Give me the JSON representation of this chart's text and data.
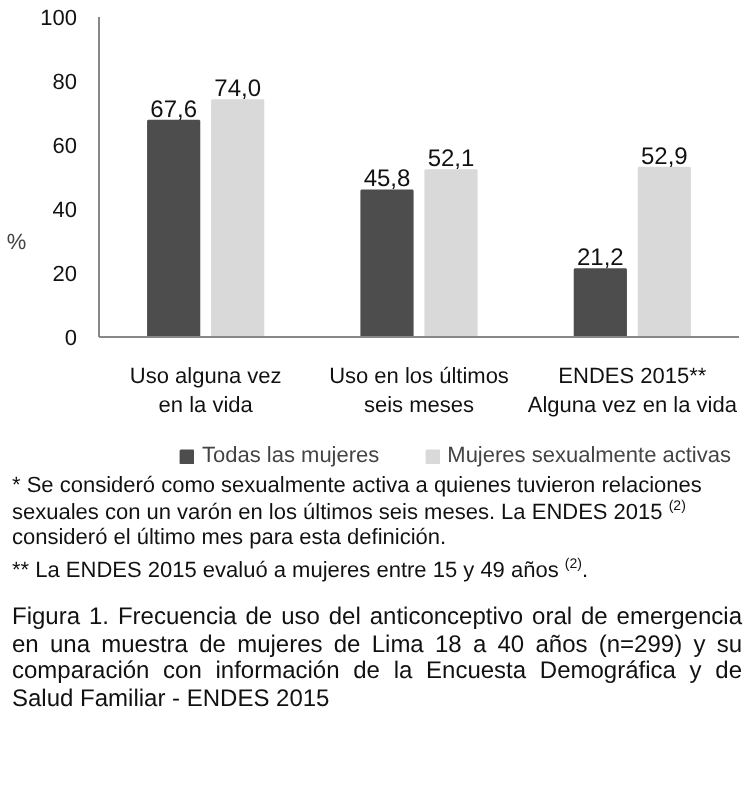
{
  "chart_data": {
    "type": "bar",
    "ylabel": "%",
    "categories": [
      "Uso alguna vez\nen la vida",
      "Uso en los últimos\nseis meses",
      "ENDES 2015**\nAlguna vez en la vida"
    ],
    "series": [
      {
        "name": "Todas las mujeres",
        "color": "#4d4d4d",
        "values": [
          67.6,
          45.8,
          21.2
        ],
        "value_labels": [
          "67,6",
          "45,8",
          "21,2"
        ]
      },
      {
        "name": "Mujeres sexualmente activas",
        "color": "#d9d9d9",
        "values": [
          74.0,
          52.1,
          52.9
        ],
        "value_labels": [
          "74,0",
          "52,1",
          "52,9"
        ]
      }
    ],
    "ylim": [
      0,
      100
    ],
    "yticks": [
      0,
      20,
      40,
      60,
      80,
      100
    ],
    "grid": false,
    "legend": "bottom",
    "annotations": [
      "* Se consideró como sexualmente activa a quienes tuvieron relaciones sexuales con un varón en los últimos seis meses. La ENDES 2015 $^{(2)}$ consideró el último mes para esta definición.",
      "** La ENDES 2015 evaluó a mujeres entre 15 y 49 años $^{(2)}$.",
      "Figura 1. Frecuencia de uso del anticonceptivo oral de emergencia en una muestra de mujeres de Lima 18 a 40 años (n=299) y su comparación con información de la Encuesta Demográfica y de Salud Familiar - ENDES 2015"
    ]
  }
}
